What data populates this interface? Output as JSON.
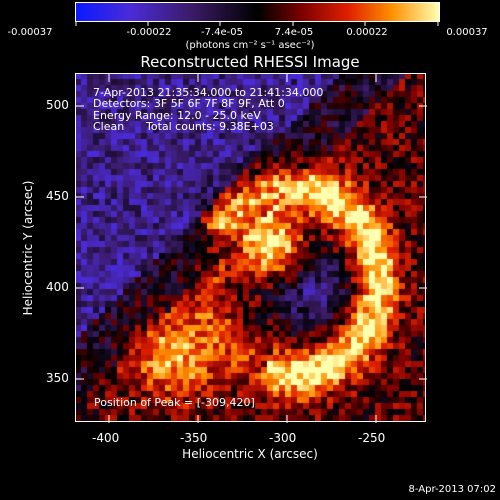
{
  "colorbar": {
    "tick_labels": [
      "-0.00037",
      "-0.00022",
      "-7.4e-05",
      "7.4e-05",
      "0.00022",
      "0.00037"
    ],
    "unit_label": "(photons cm⁻² s⁻¹ asec⁻²)"
  },
  "title": "Reconstructed RHESSI Image",
  "info": {
    "time_range": "7-Apr-2013 21:35:34.000 to 21:41:34.000",
    "detectors": "Detectors: 3F 5F 6F 7F 8F 9F, Att 0",
    "energy_range": "Energy Range: 12.0 - 25.0 keV",
    "algorithm": "Clean",
    "total_counts": "Total counts: 9.38E+03",
    "peak": "Position of Peak = [-309,420]"
  },
  "axes": {
    "x_label": "Heliocentric X (arcsec)",
    "y_label": "Heliocentric Y (arcsec)",
    "x_ticks": [
      "-400",
      "-350",
      "-300",
      "-250"
    ],
    "y_ticks": [
      "500",
      "450",
      "400",
      "350"
    ]
  },
  "footer_date": "8-Apr-2013 07:02",
  "colors": {
    "colormap_low": "#0000ff",
    "colormap_mid": "#000000",
    "colormap_high": "#ffff80",
    "background": "#000000",
    "text": "#ffffff"
  }
}
